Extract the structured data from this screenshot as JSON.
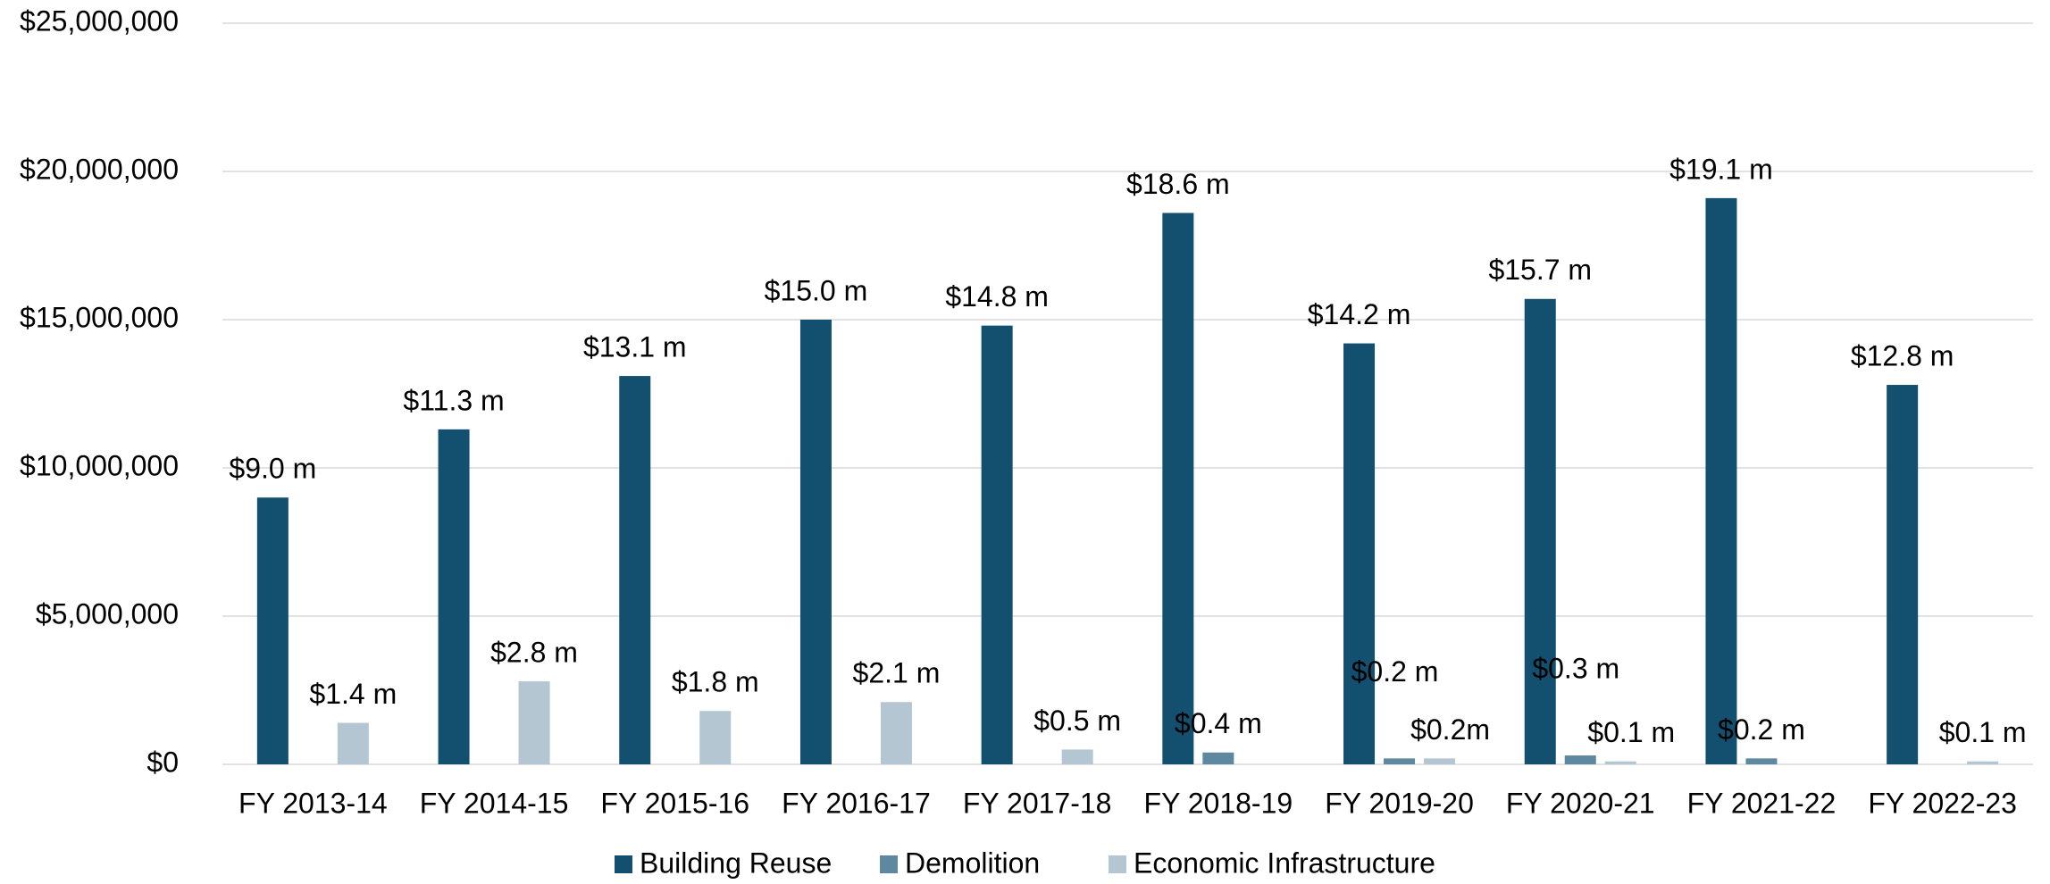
{
  "chart_data": {
    "type": "bar",
    "categories": [
      "FY 2013-14",
      "FY 2014-15",
      "FY 2015-16",
      "FY 2016-17",
      "FY 2017-18",
      "FY 2018-19",
      "FY 2019-20",
      "FY 2020-21",
      "FY 2021-22",
      "FY 2022-23"
    ],
    "series": [
      {
        "name": "Building Reuse",
        "color": "#134f6f",
        "values": [
          9000000,
          11300000,
          13100000,
          15000000,
          14800000,
          18600000,
          14200000,
          15700000,
          19100000,
          12800000
        ],
        "value_labels": [
          "$9.0 m",
          "$11.3 m",
          "$13.1 m",
          "$15.0 m",
          "$14.8 m",
          "$18.6 m",
          "$14.2 m",
          "$15.7 m",
          "$19.1 m",
          "$12.8 m"
        ]
      },
      {
        "name": "Demolition",
        "color": "#5e87a0",
        "values": [
          null,
          null,
          null,
          null,
          null,
          400000,
          200000,
          300000,
          200000,
          null
        ],
        "value_labels": [
          null,
          null,
          null,
          null,
          null,
          "$0.4 m",
          "$0.2 m",
          "$0.3 m",
          "$0.2 m",
          null
        ]
      },
      {
        "name": "Economic Infrastructure",
        "color": "#b4c6d2",
        "values": [
          1400000,
          2800000,
          1800000,
          2100000,
          500000,
          null,
          200000,
          100000,
          null,
          100000
        ],
        "value_labels": [
          "$1.4 m",
          "$2.8 m",
          "$1.8 m",
          "$2.1 m",
          "$0.5 m",
          null,
          "$0.2m",
          "$0.1 m",
          null,
          "$0.1 m"
        ]
      }
    ],
    "ylim": [
      0,
      25000000
    ],
    "yticks": [
      {
        "value": 0,
        "label": "$0"
      },
      {
        "value": 5000000,
        "label": "$5,000,000"
      },
      {
        "value": 10000000,
        "label": "$10,000,000"
      },
      {
        "value": 15000000,
        "label": "$15,000,000"
      },
      {
        "value": 20000000,
        "label": "$20,000,000"
      },
      {
        "value": 25000000,
        "label": "$25,000,000"
      }
    ],
    "grid": true,
    "legend": "bottom"
  }
}
